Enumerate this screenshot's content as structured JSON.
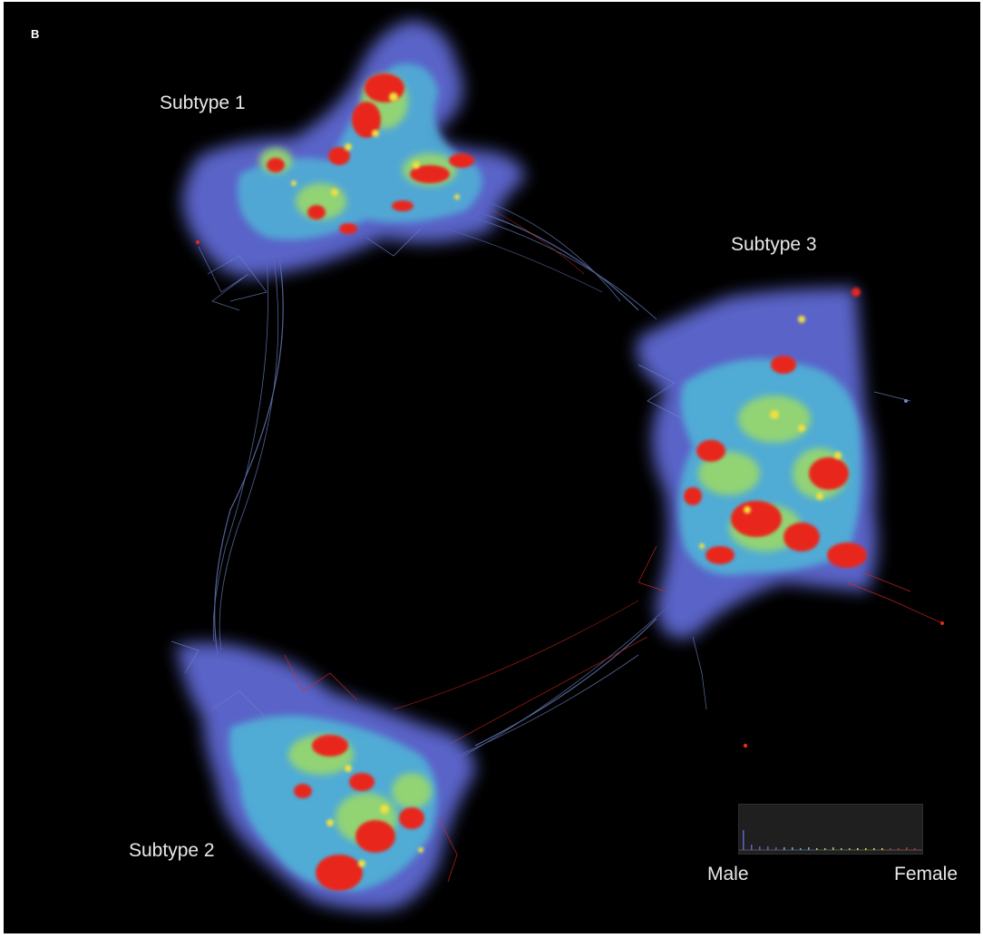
{
  "panel_label": "B",
  "clusters": [
    {
      "label": "Subtype 1"
    },
    {
      "label": "Subtype 2"
    },
    {
      "label": "Subtype 3"
    }
  ],
  "legend": {
    "left_label": "Male",
    "right_label": "Female"
  },
  "colors": {
    "background": "#000000",
    "blue": "#5a63c8",
    "cyan": "#4fb8d8",
    "green": "#9ad86a",
    "yellow": "#f0e040",
    "red": "#e8281e",
    "edge": "#6f86c9"
  }
}
